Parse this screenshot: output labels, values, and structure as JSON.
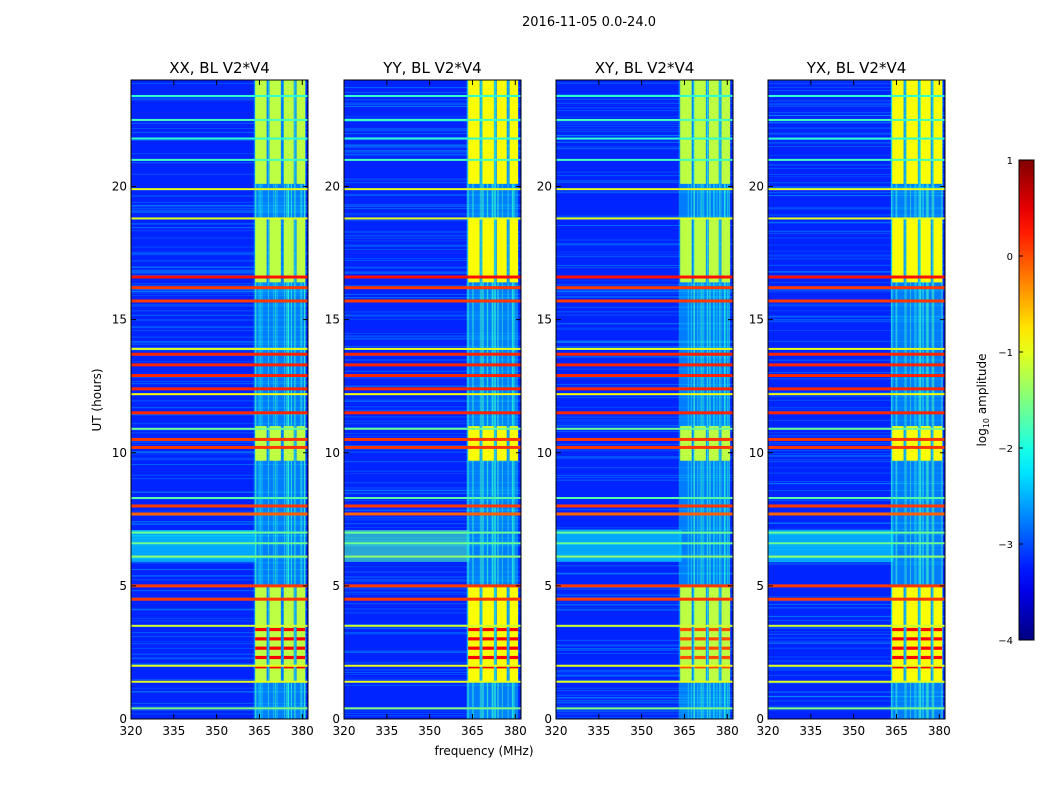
{
  "suptitle": "2016-11-05 0.0-24.0",
  "chart_data": {
    "type": "heatmap",
    "xlabel": "frequency (MHz)",
    "ylabel": "UT (hours)",
    "xlim": [
      320,
      382
    ],
    "ylim": [
      0,
      24
    ],
    "xticks": [
      320,
      335,
      350,
      365,
      380
    ],
    "yticks": [
      0,
      5,
      10,
      15,
      20
    ],
    "colorbar": {
      "label": "log",
      "label_sub": "10",
      "label_rest": " amplitude",
      "range": [
        -4,
        1
      ],
      "ticks": [
        1,
        0,
        -1,
        -2,
        -3,
        -4
      ],
      "tick_labels": [
        "1",
        "0",
        "−1",
        "−2",
        "−3",
        "−4"
      ],
      "colormap": "jet"
    },
    "panels": [
      {
        "title": "XX, BL V2*V4",
        "pol": "XX"
      },
      {
        "title": "YY, BL V2*V4",
        "pol": "YY"
      },
      {
        "title": "XY, BL V2*V4",
        "pol": "XY"
      },
      {
        "title": "YX, BL V2*V4",
        "pol": "YX"
      }
    ],
    "rfi_band_mhz": [
      363,
      381
    ],
    "rfi_subbands_mhz": [
      [
        363.5,
        367.5
      ],
      [
        368.5,
        372.5
      ],
      [
        373.5,
        377.0
      ],
      [
        378.0,
        381.0
      ]
    ],
    "rfi_active_periods_hours": [
      [
        1.4,
        5.0
      ],
      [
        9.7,
        11.0
      ],
      [
        16.4,
        18.8
      ],
      [
        20.1,
        24.0
      ]
    ],
    "strong_rfi_periods_hours": [
      [
        1.9,
        3.6
      ]
    ],
    "broadband_rfi_lines_hours": [
      {
        "t": 0.4,
        "level": -1.5
      },
      {
        "t": 1.4,
        "level": -1.0
      },
      {
        "t": 2.0,
        "level": -1.0
      },
      {
        "t": 3.5,
        "level": -1.1
      },
      {
        "t": 4.5,
        "level": 0.1
      },
      {
        "t": 5.0,
        "level": 0.1
      },
      {
        "t": 6.1,
        "level": -1.4
      },
      {
        "t": 6.6,
        "level": -1.6
      },
      {
        "t": 7.0,
        "level": -1.6
      },
      {
        "t": 7.7,
        "level": -0.1
      },
      {
        "t": 8.0,
        "level": 0.1
      },
      {
        "t": 8.3,
        "level": -1.7
      },
      {
        "t": 10.2,
        "level": 0.1
      },
      {
        "t": 10.5,
        "level": 0.1
      },
      {
        "t": 10.9,
        "level": -1.6
      },
      {
        "t": 11.5,
        "level": 0.2
      },
      {
        "t": 12.2,
        "level": -0.9
      },
      {
        "t": 12.4,
        "level": 0.2
      },
      {
        "t": 12.9,
        "level": 0.2
      },
      {
        "t": 13.3,
        "level": 0.2
      },
      {
        "t": 13.7,
        "level": 0.2
      },
      {
        "t": 13.9,
        "level": -1.0
      },
      {
        "t": 15.7,
        "level": 0.1
      },
      {
        "t": 16.2,
        "level": 0.1
      },
      {
        "t": 16.6,
        "level": 0.3
      },
      {
        "t": 18.8,
        "level": -1.0
      },
      {
        "t": 19.9,
        "level": -1.0
      },
      {
        "t": 21.0,
        "level": -1.8
      },
      {
        "t": 21.8,
        "level": -1.9
      },
      {
        "t": 22.5,
        "level": -1.8
      },
      {
        "t": 23.4,
        "level": -1.9
      }
    ],
    "background_level": -3.2
  }
}
